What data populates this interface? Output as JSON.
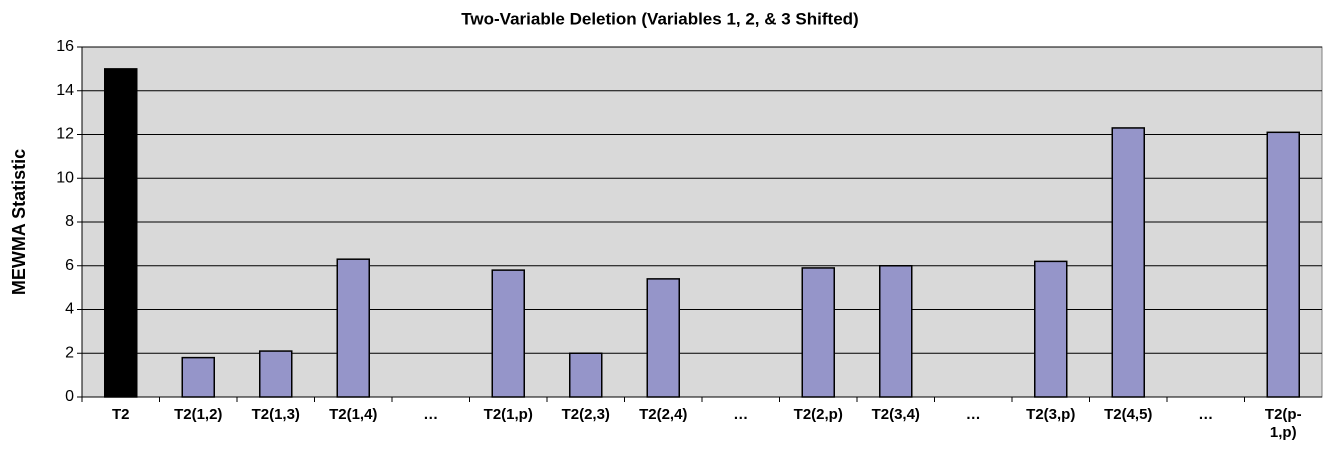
{
  "chart_data": {
    "type": "bar",
    "title": "Two-Variable Deletion (Variables 1, 2, & 3 Shifted)",
    "y_label": "MEWMA Statistic",
    "categories": [
      "T2",
      "T2(1,2)",
      "T2(1,3)",
      "T2(1,4)",
      "…",
      "T2(1,p)",
      "T2(2,3)",
      "T2(2,4)",
      "…",
      "T2(2,p)",
      "T2(3,4)",
      "…",
      "T2(3,p)",
      "T2(4,5)",
      "…",
      "T2(p-1,p)"
    ],
    "values": [
      15,
      1.8,
      2.1,
      6.3,
      null,
      5.8,
      2.0,
      5.4,
      null,
      5.9,
      6.0,
      null,
      6.2,
      12.3,
      null,
      12.1
    ],
    "colors": [
      "#000000",
      "#9595c9",
      "#9595c9",
      "#9595c9",
      "#9595c9",
      "#9595c9",
      "#9595c9",
      "#9595c9",
      "#9595c9",
      "#9595c9",
      "#9595c9",
      "#9595c9",
      "#9595c9",
      "#9595c9",
      "#9595c9",
      "#9595c9"
    ],
    "ylim": [
      0,
      16
    ],
    "yticks": [
      0,
      2,
      4,
      6,
      8,
      10,
      12,
      14,
      16
    ],
    "grid": true
  }
}
